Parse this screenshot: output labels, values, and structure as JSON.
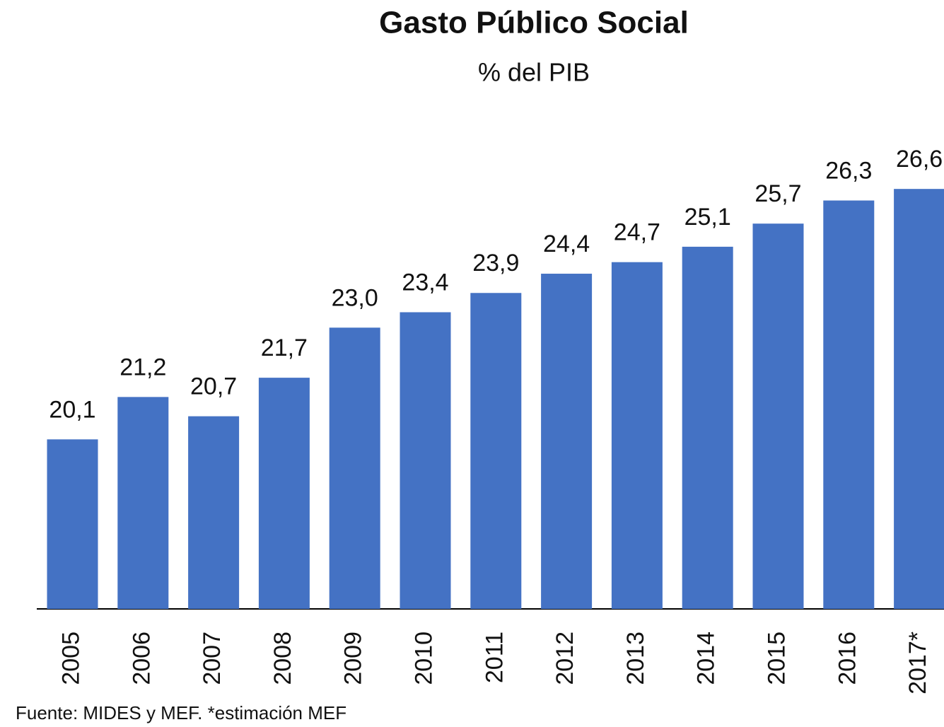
{
  "chart_data": {
    "type": "bar",
    "title": "Gasto Público Social",
    "subtitle": "% del PIB",
    "categories": [
      "2005",
      "2006",
      "2007",
      "2008",
      "2009",
      "2010",
      "2011",
      "2012",
      "2013",
      "2014",
      "2015",
      "2016",
      "2017*"
    ],
    "values": [
      20.1,
      21.2,
      20.7,
      21.7,
      23.0,
      23.4,
      23.9,
      24.4,
      24.7,
      25.1,
      25.7,
      26.3,
      26.6
    ],
    "value_labels": [
      "20,1",
      "21,2",
      "20,7",
      "21,7",
      "23,0",
      "23,4",
      "23,9",
      "24,4",
      "24,7",
      "25,1",
      "25,7",
      "26,3",
      "26,6"
    ],
    "color": "#4472c4",
    "ylim": [
      15.7,
      28.2
    ],
    "note": "Fuente: MIDES y MEF. *estimación MEF"
  }
}
